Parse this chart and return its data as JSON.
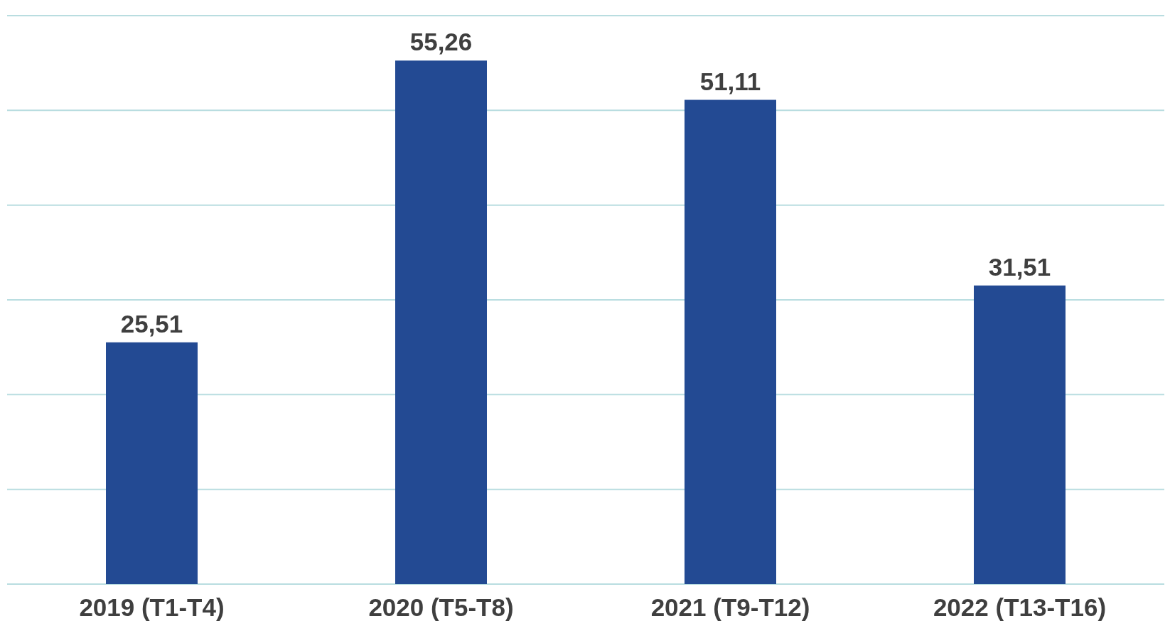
{
  "chart_data": {
    "type": "bar",
    "categories": [
      "2019 (T1-T4)",
      "2020 (T5-T8)",
      "2021 (T9-T12)",
      "2022 (T13-T16)"
    ],
    "values": [
      25.51,
      55.26,
      51.11,
      31.51
    ],
    "value_labels": [
      "25,51",
      "55,26",
      "51,11",
      "31,51"
    ],
    "colors": [
      "#234a93",
      "#234a93",
      "#234a93",
      "#234a93"
    ],
    "ylim": [
      0,
      60
    ],
    "tick_labels": "x",
    "grid": "y"
  }
}
